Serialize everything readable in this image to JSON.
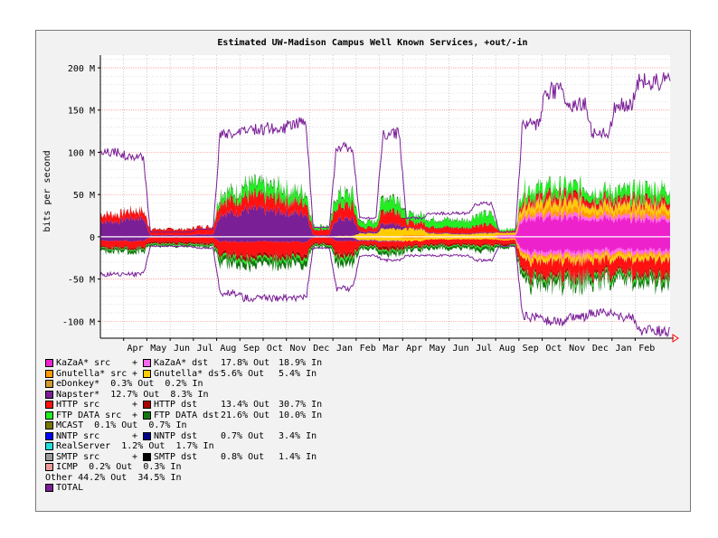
{
  "chart_data": {
    "type": "area",
    "title": "Estimated UW-Madison Campus Well Known Services, +out/-in",
    "ylabel": "bits per second",
    "ylim": [
      -120,
      215
    ],
    "yticks": [
      {
        "value": 200,
        "label": "200 M"
      },
      {
        "value": 150,
        "label": "150 M"
      },
      {
        "value": 100,
        "label": "100 M"
      },
      {
        "value": 50,
        "label": "50 M"
      },
      {
        "value": 0,
        "label": "0"
      },
      {
        "value": -50,
        "label": "-50 M"
      },
      {
        "value": -100,
        "label": "-100 M"
      }
    ],
    "xlim": [
      0,
      24.5
    ],
    "xticks": [
      "Apr",
      "May",
      "Jun",
      "Jul",
      "Aug",
      "Sep",
      "Oct",
      "Nov",
      "Dec",
      "Jan",
      "Feb",
      "Mar",
      "Apr",
      "May",
      "Jun",
      "Jul",
      "Aug",
      "Sep",
      "Oct",
      "Nov",
      "Dec",
      "Jan",
      "Feb"
    ],
    "months_x": [
      0.5,
      1.5,
      2.5,
      3.5,
      4.5,
      5.5,
      6.5,
      7.5,
      8.5,
      9.5,
      10.5,
      11.5,
      12.5,
      13.5,
      14.5,
      15.5,
      16.5,
      17.5,
      18.5,
      19.5,
      20.5,
      21.5,
      22.5,
      23.5
    ],
    "month_series": [
      {
        "name": "KaZaA* src",
        "color": "#ee22cc",
        "out": [
          0,
          0,
          0,
          0,
          0,
          0,
          0,
          0,
          0,
          0,
          0,
          0,
          0,
          0,
          0,
          0,
          0,
          1,
          22,
          22,
          22,
          22,
          20,
          20
        ]
      },
      {
        "name": "KaZaA* dst",
        "color": "#ff66ee",
        "out": [
          0,
          0,
          0,
          0,
          0,
          0,
          0,
          0,
          0,
          0,
          0,
          0,
          0,
          0,
          0,
          0,
          0,
          1,
          4,
          4,
          4,
          4,
          4,
          4
        ]
      },
      {
        "name": "Gnutella* src",
        "color": "#ff9900",
        "out": [
          0,
          0,
          0,
          0,
          0,
          0,
          0,
          0,
          0,
          0,
          0,
          1,
          1,
          2,
          1,
          1,
          1,
          1,
          5,
          6,
          6,
          5,
          5,
          6
        ]
      },
      {
        "name": "Gnutella* dst",
        "color": "#ffcc00",
        "out": [
          0,
          0,
          0,
          0,
          0,
          0,
          0,
          0,
          0,
          0,
          1,
          3,
          9,
          7,
          3,
          2,
          3,
          2,
          7,
          7,
          7,
          6,
          6,
          6
        ]
      },
      {
        "name": "eDonkey*",
        "color": "#cc9933",
        "out": [
          0,
          0,
          0,
          0,
          0,
          0,
          0,
          0,
          0,
          0,
          0,
          0,
          0,
          0,
          0,
          0,
          0,
          0,
          2,
          2,
          2,
          2,
          2,
          2
        ]
      },
      {
        "name": "Napster*",
        "color": "#7a1f96",
        "out": [
          18,
          22,
          2,
          2,
          3,
          28,
          32,
          30,
          28,
          2,
          20,
          2,
          6,
          1,
          1,
          1,
          1,
          0,
          0,
          0,
          0,
          0,
          0,
          0
        ]
      },
      {
        "name": "HTTP src",
        "color": "#ff1111",
        "out": [
          8,
          8,
          6,
          6,
          8,
          14,
          14,
          14,
          12,
          6,
          14,
          4,
          14,
          6,
          6,
          6,
          8,
          2,
          5,
          6,
          6,
          5,
          5,
          5
        ]
      },
      {
        "name": "HTTP dst",
        "color": "#aa0000",
        "out": [
          1,
          1,
          1,
          1,
          1,
          2,
          2,
          2,
          2,
          1,
          2,
          1,
          2,
          1,
          1,
          1,
          1,
          0,
          2,
          2,
          2,
          2,
          2,
          2
        ]
      },
      {
        "name": "FTP DATA src",
        "color": "#22ee22",
        "out": [
          0,
          0,
          0,
          0,
          0,
          8,
          12,
          12,
          10,
          3,
          12,
          6,
          14,
          8,
          8,
          8,
          12,
          2,
          10,
          10,
          10,
          8,
          10,
          12
        ]
      },
      {
        "name": "FTP DATA dst",
        "color": "#117711",
        "out": [
          0,
          0,
          0,
          0,
          0,
          2,
          2,
          2,
          2,
          1,
          2,
          1,
          2,
          1,
          1,
          1,
          1,
          0,
          1,
          1,
          1,
          1,
          1,
          1
        ]
      }
    ],
    "month_series_in": [
      {
        "name": "KaZaA* src",
        "in": [
          0,
          0,
          0,
          0,
          0,
          0,
          0,
          0,
          0,
          0,
          0,
          0,
          0,
          0,
          0,
          0,
          0,
          2,
          18,
          18,
          18,
          16,
          16,
          16
        ]
      },
      {
        "name": "KaZaA* dst",
        "in": [
          0,
          0,
          0,
          0,
          0,
          0,
          0,
          0,
          0,
          0,
          0,
          0,
          0,
          0,
          0,
          0,
          0,
          0,
          4,
          4,
          4,
          4,
          4,
          4
        ]
      },
      {
        "name": "Gnutella* src",
        "in": [
          0,
          0,
          0,
          0,
          0,
          0,
          0,
          0,
          0,
          0,
          0,
          1,
          1,
          2,
          1,
          1,
          1,
          1,
          3,
          3,
          3,
          3,
          3,
          3
        ]
      },
      {
        "name": "Gnutella* dst",
        "in": [
          0,
          0,
          0,
          0,
          0,
          0,
          0,
          0,
          0,
          0,
          1,
          3,
          4,
          3,
          2,
          2,
          2,
          1,
          4,
          4,
          4,
          4,
          4,
          4
        ]
      },
      {
        "name": "eDonkey*",
        "in": [
          0,
          0,
          0,
          0,
          0,
          0,
          0,
          0,
          0,
          0,
          0,
          0,
          0,
          0,
          0,
          0,
          0,
          0,
          1,
          1,
          1,
          1,
          1,
          1
        ]
      },
      {
        "name": "Napster*",
        "in": [
          5,
          5,
          1,
          1,
          1,
          6,
          6,
          6,
          6,
          1,
          4,
          1,
          1,
          0,
          0,
          0,
          0,
          0,
          0,
          0,
          0,
          0,
          0,
          0
        ]
      },
      {
        "name": "HTTP src",
        "in": [
          7,
          7,
          5,
          5,
          6,
          14,
          16,
          16,
          14,
          6,
          14,
          4,
          6,
          5,
          5,
          5,
          6,
          4,
          14,
          16,
          16,
          14,
          14,
          16
        ]
      },
      {
        "name": "HTTP dst",
        "in": [
          2,
          2,
          2,
          2,
          2,
          4,
          4,
          4,
          4,
          2,
          4,
          2,
          4,
          2,
          2,
          2,
          2,
          2,
          4,
          4,
          4,
          4,
          4,
          4
        ]
      },
      {
        "name": "FTP DATA src",
        "in": [
          1,
          1,
          1,
          1,
          1,
          3,
          3,
          3,
          3,
          1,
          3,
          1,
          2,
          1,
          1,
          1,
          2,
          1,
          3,
          3,
          3,
          3,
          3,
          3
        ]
      },
      {
        "name": "FTP DATA dst",
        "in": [
          3,
          3,
          2,
          2,
          2,
          6,
          6,
          6,
          6,
          2,
          6,
          3,
          4,
          3,
          3,
          3,
          4,
          2,
          6,
          6,
          6,
          5,
          5,
          6
        ]
      }
    ],
    "total_out": [
      90,
      85,
      5,
      5,
      8,
      110,
      115,
      115,
      120,
      10,
      95,
      20,
      110,
      20,
      25,
      25,
      35,
      5,
      120,
      155,
      140,
      110,
      140,
      165
    ],
    "total_in": [
      -40,
      -40,
      -10,
      -10,
      -12,
      -60,
      -65,
      -65,
      -65,
      -12,
      -55,
      -20,
      -25,
      -20,
      -20,
      -20,
      -25,
      -10,
      -85,
      -90,
      -85,
      -80,
      -85,
      -100
    ],
    "legend": [
      {
        "a": {
          "name": "KaZaA* src",
          "color": "#ee22cc"
        },
        "b": {
          "name": "KaZaA* dst",
          "color": "#ff66ee"
        },
        "out": "17.8% Out",
        "in": "18.9% In"
      },
      {
        "a": {
          "name": "Gnutella* src",
          "color": "#ff9900"
        },
        "b": {
          "name": "Gnutella* dst",
          "color": "#ffcc00"
        },
        "out": "5.6% Out",
        "in": "5.4% In"
      },
      {
        "a": {
          "name": "eDonkey*",
          "color": "#cc9933"
        },
        "b": null,
        "text": "0.3% Out  0.2% In"
      },
      {
        "a": {
          "name": "Napster*",
          "color": "#7a1f96"
        },
        "b": null,
        "text": "12.7% Out  8.3% In"
      },
      {
        "a": {
          "name": "HTTP src",
          "color": "#ff1111"
        },
        "b": {
          "name": "HTTP dst",
          "color": "#aa0000"
        },
        "out": "13.4% Out",
        "in": "30.7% In"
      },
      {
        "a": {
          "name": "FTP DATA src",
          "color": "#22ee22"
        },
        "b": {
          "name": "FTP DATA dst",
          "color": "#117711"
        },
        "out": "21.6% Out",
        "in": "10.0% In"
      },
      {
        "a": {
          "name": "MCAST",
          "color": "#777700"
        },
        "b": null,
        "text": "0.1% Out  0.7% In"
      },
      {
        "a": {
          "name": "NNTP src",
          "color": "#0000ff"
        },
        "b": {
          "name": "NNTP dst",
          "color": "#000088"
        },
        "out": "0.7% Out",
        "in": "3.4% In"
      },
      {
        "a": {
          "name": "RealServer",
          "color": "#22dddd"
        },
        "b": null,
        "text": "1.2% Out  1.7% In"
      },
      {
        "a": {
          "name": "SMTP src",
          "color": "#999999"
        },
        "b": {
          "name": "SMTP dst",
          "color": "#000000"
        },
        "out": "0.8% Out",
        "in": "1.4% In"
      },
      {
        "a": {
          "name": "ICMP",
          "color": "#ee9999"
        },
        "b": null,
        "text": "0.2% Out  0.3% In"
      },
      {
        "a": null,
        "b": null,
        "text": "Other 44.2% Out  34.5% In"
      },
      {
        "a": {
          "name": "TOTAL",
          "color": "#7a1f96"
        },
        "b": null,
        "text": ""
      }
    ]
  }
}
